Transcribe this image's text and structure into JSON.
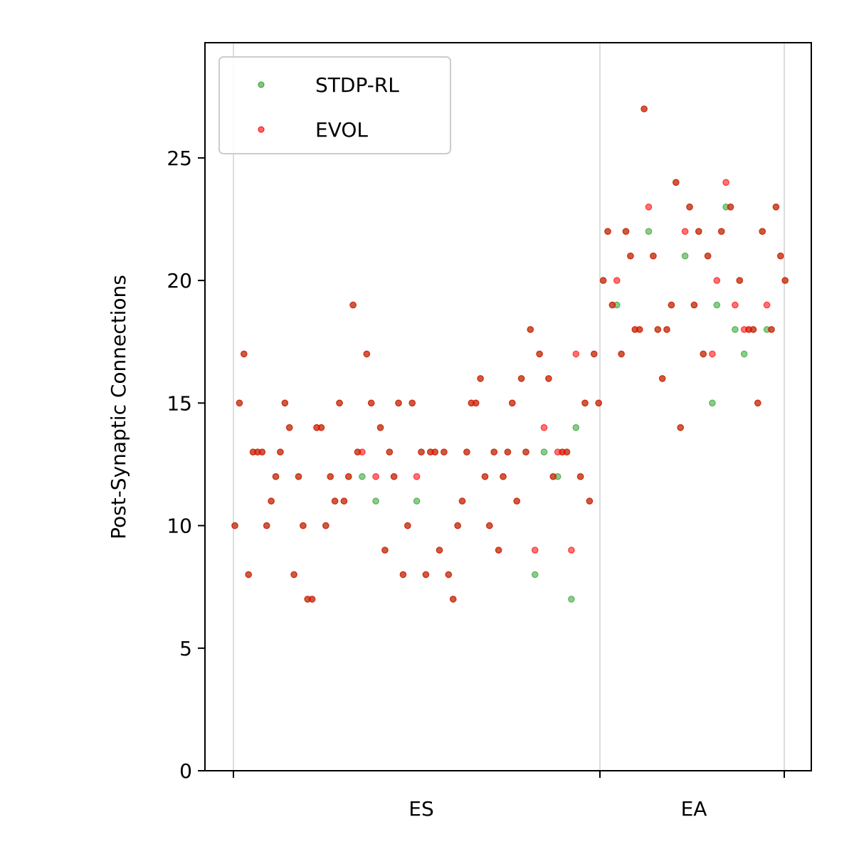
{
  "chart_data": {
    "type": "scatter",
    "title": "",
    "xlabel": "",
    "ylabel": "Post-Synaptic Connections",
    "x_tick_labels": [
      "ES",
      "EA"
    ],
    "ylim": [
      0,
      29.7
    ],
    "y_ticks": [
      0,
      5,
      10,
      15,
      20,
      25
    ],
    "grid": "vertical lines at group boundaries",
    "legend": "top-left",
    "groups": [
      {
        "label": "ES",
        "x_start": 0,
        "x_end": 80
      },
      {
        "label": "EA",
        "x_start": 80,
        "x_end": 120
      }
    ],
    "series": [
      {
        "name": "STDP-RL",
        "color": "#2ca02c",
        "points": [
          [
            0,
            10
          ],
          [
            1,
            15
          ],
          [
            2,
            17
          ],
          [
            3,
            8
          ],
          [
            4,
            13
          ],
          [
            5,
            13
          ],
          [
            6,
            13
          ],
          [
            7,
            10
          ],
          [
            8,
            11
          ],
          [
            9,
            12
          ],
          [
            10,
            13
          ],
          [
            11,
            15
          ],
          [
            12,
            14
          ],
          [
            13,
            8
          ],
          [
            14,
            12
          ],
          [
            15,
            10
          ],
          [
            16,
            7
          ],
          [
            17,
            7
          ],
          [
            18,
            14
          ],
          [
            19,
            14
          ],
          [
            20,
            10
          ],
          [
            21,
            12
          ],
          [
            22,
            11
          ],
          [
            23,
            15
          ],
          [
            24,
            11
          ],
          [
            25,
            12
          ],
          [
            26,
            19
          ],
          [
            27,
            13
          ],
          [
            28,
            12
          ],
          [
            29,
            17
          ],
          [
            30,
            15
          ],
          [
            31,
            11
          ],
          [
            32,
            14
          ],
          [
            33,
            9
          ],
          [
            34,
            13
          ],
          [
            35,
            12
          ],
          [
            36,
            15
          ],
          [
            37,
            8
          ],
          [
            38,
            10
          ],
          [
            39,
            15
          ],
          [
            40,
            11
          ],
          [
            41,
            13
          ],
          [
            42,
            8
          ],
          [
            43,
            13
          ],
          [
            44,
            13
          ],
          [
            45,
            9
          ],
          [
            46,
            13
          ],
          [
            47,
            8
          ],
          [
            48,
            7
          ],
          [
            49,
            10
          ],
          [
            50,
            11
          ],
          [
            51,
            13
          ],
          [
            52,
            15
          ],
          [
            53,
            15
          ],
          [
            54,
            16
          ],
          [
            55,
            12
          ],
          [
            56,
            10
          ],
          [
            57,
            13
          ],
          [
            58,
            9
          ],
          [
            59,
            12
          ],
          [
            60,
            13
          ],
          [
            61,
            15
          ],
          [
            62,
            11
          ],
          [
            63,
            16
          ],
          [
            64,
            13
          ],
          [
            65,
            18
          ],
          [
            66,
            8
          ],
          [
            67,
            17
          ],
          [
            68,
            13
          ],
          [
            69,
            16
          ],
          [
            70,
            12
          ],
          [
            71,
            12
          ],
          [
            72,
            13
          ],
          [
            73,
            13
          ],
          [
            74,
            7
          ],
          [
            75,
            14
          ],
          [
            76,
            12
          ],
          [
            77,
            15
          ],
          [
            78,
            11
          ],
          [
            79,
            17
          ],
          [
            80,
            15
          ],
          [
            81,
            20
          ],
          [
            82,
            22
          ],
          [
            83,
            19
          ],
          [
            84,
            19
          ],
          [
            85,
            17
          ],
          [
            86,
            22
          ],
          [
            87,
            21
          ],
          [
            88,
            18
          ],
          [
            89,
            18
          ],
          [
            90,
            27
          ],
          [
            91,
            22
          ],
          [
            92,
            21
          ],
          [
            93,
            18
          ],
          [
            94,
            16
          ],
          [
            95,
            18
          ],
          [
            96,
            19
          ],
          [
            97,
            24
          ],
          [
            98,
            14
          ],
          [
            99,
            21
          ],
          [
            100,
            23
          ],
          [
            101,
            19
          ],
          [
            102,
            22
          ],
          [
            103,
            17
          ],
          [
            104,
            21
          ],
          [
            105,
            15
          ],
          [
            106,
            19
          ],
          [
            107,
            22
          ],
          [
            108,
            23
          ],
          [
            109,
            23
          ],
          [
            110,
            18
          ],
          [
            111,
            20
          ],
          [
            112,
            17
          ],
          [
            113,
            18
          ],
          [
            114,
            18
          ],
          [
            115,
            15
          ],
          [
            116,
            22
          ],
          [
            117,
            18
          ],
          [
            118,
            18
          ],
          [
            119,
            23
          ],
          [
            120,
            21
          ],
          [
            121,
            20
          ]
        ]
      },
      {
        "name": "EVOL",
        "color": "#ff0000",
        "points": [
          [
            0,
            10
          ],
          [
            1,
            15
          ],
          [
            2,
            17
          ],
          [
            3,
            8
          ],
          [
            4,
            13
          ],
          [
            5,
            13
          ],
          [
            6,
            13
          ],
          [
            7,
            10
          ],
          [
            8,
            11
          ],
          [
            9,
            12
          ],
          [
            10,
            13
          ],
          [
            11,
            15
          ],
          [
            12,
            14
          ],
          [
            13,
            8
          ],
          [
            14,
            12
          ],
          [
            15,
            10
          ],
          [
            16,
            7
          ],
          [
            17,
            7
          ],
          [
            18,
            14
          ],
          [
            19,
            14
          ],
          [
            20,
            10
          ],
          [
            21,
            12
          ],
          [
            22,
            11
          ],
          [
            23,
            15
          ],
          [
            24,
            11
          ],
          [
            25,
            12
          ],
          [
            26,
            19
          ],
          [
            27,
            13
          ],
          [
            28,
            13
          ],
          [
            29,
            17
          ],
          [
            30,
            15
          ],
          [
            31,
            12
          ],
          [
            32,
            14
          ],
          [
            33,
            9
          ],
          [
            34,
            13
          ],
          [
            35,
            12
          ],
          [
            36,
            15
          ],
          [
            37,
            8
          ],
          [
            38,
            10
          ],
          [
            39,
            15
          ],
          [
            40,
            12
          ],
          [
            41,
            13
          ],
          [
            42,
            8
          ],
          [
            43,
            13
          ],
          [
            44,
            13
          ],
          [
            45,
            9
          ],
          [
            46,
            13
          ],
          [
            47,
            8
          ],
          [
            48,
            7
          ],
          [
            49,
            10
          ],
          [
            50,
            11
          ],
          [
            51,
            13
          ],
          [
            52,
            15
          ],
          [
            53,
            15
          ],
          [
            54,
            16
          ],
          [
            55,
            12
          ],
          [
            56,
            10
          ],
          [
            57,
            13
          ],
          [
            58,
            9
          ],
          [
            59,
            12
          ],
          [
            60,
            13
          ],
          [
            61,
            15
          ],
          [
            62,
            11
          ],
          [
            63,
            16
          ],
          [
            64,
            13
          ],
          [
            65,
            18
          ],
          [
            66,
            9
          ],
          [
            67,
            17
          ],
          [
            68,
            14
          ],
          [
            69,
            16
          ],
          [
            70,
            12
          ],
          [
            71,
            13
          ],
          [
            72,
            13
          ],
          [
            73,
            13
          ],
          [
            74,
            9
          ],
          [
            75,
            17
          ],
          [
            76,
            12
          ],
          [
            77,
            15
          ],
          [
            78,
            11
          ],
          [
            79,
            17
          ],
          [
            80,
            15
          ],
          [
            81,
            20
          ],
          [
            82,
            22
          ],
          [
            83,
            19
          ],
          [
            84,
            20
          ],
          [
            85,
            17
          ],
          [
            86,
            22
          ],
          [
            87,
            21
          ],
          [
            88,
            18
          ],
          [
            89,
            18
          ],
          [
            90,
            27
          ],
          [
            91,
            23
          ],
          [
            92,
            21
          ],
          [
            93,
            18
          ],
          [
            94,
            16
          ],
          [
            95,
            18
          ],
          [
            96,
            19
          ],
          [
            97,
            24
          ],
          [
            98,
            14
          ],
          [
            99,
            22
          ],
          [
            100,
            23
          ],
          [
            101,
            19
          ],
          [
            102,
            22
          ],
          [
            103,
            17
          ],
          [
            104,
            21
          ],
          [
            105,
            17
          ],
          [
            106,
            20
          ],
          [
            107,
            22
          ],
          [
            108,
            24
          ],
          [
            109,
            23
          ],
          [
            110,
            19
          ],
          [
            111,
            20
          ],
          [
            112,
            18
          ],
          [
            113,
            18
          ],
          [
            114,
            18
          ],
          [
            115,
            15
          ],
          [
            116,
            22
          ],
          [
            117,
            19
          ],
          [
            118,
            18
          ],
          [
            119,
            23
          ],
          [
            120,
            21
          ],
          [
            121,
            20
          ]
        ]
      }
    ]
  }
}
